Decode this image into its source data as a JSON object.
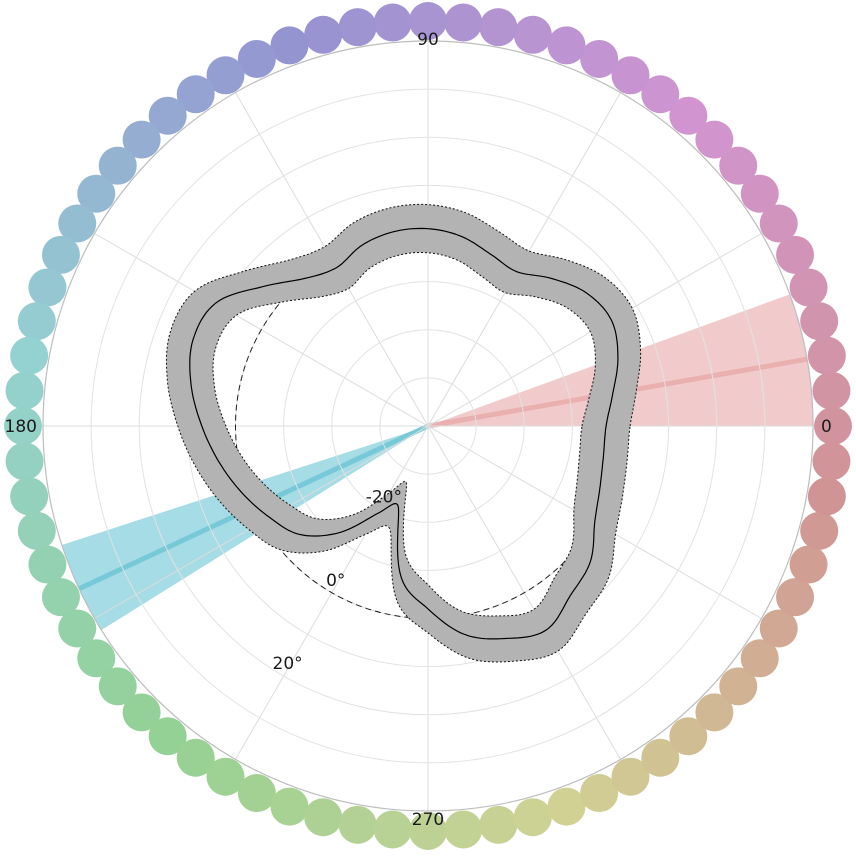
{
  "chart_data": {
    "type": "polar-line",
    "title": "",
    "angle_ticks": [
      {
        "angle": 0,
        "label": "0"
      },
      {
        "angle": 90,
        "label": "90"
      },
      {
        "angle": 180,
        "label": "180"
      },
      {
        "angle": 270,
        "label": "270"
      }
    ],
    "radial_ticks": [
      {
        "value": -20,
        "label": "-20°"
      },
      {
        "value": 0,
        "label": "0°"
      },
      {
        "value": 20,
        "label": "20°"
      }
    ],
    "radial_range": [
      -40,
      40
    ],
    "reference_circle_value": 0,
    "grid": true,
    "color_wheel": {
      "count": 72,
      "start_hue_deg": 350,
      "saturation": 40,
      "lightness": 70
    },
    "series": {
      "mean_angle_deg": [
        0,
        10,
        20,
        30,
        40,
        50,
        60,
        70,
        80,
        90,
        100,
        110,
        120,
        130,
        140,
        150,
        160,
        170,
        180,
        190,
        200,
        210,
        220,
        230,
        240,
        250,
        260,
        270,
        280,
        290,
        300,
        310,
        320,
        330,
        340,
        350
      ],
      "mean": [
        -3,
        -1,
        2,
        4,
        3,
        0,
        -3,
        -2,
        0,
        1,
        1,
        0,
        -2,
        0,
        5,
        11,
        12,
        10,
        7,
        4,
        1,
        -2,
        -5,
        -11,
        -19,
        -22,
        -8,
        -2,
        4,
        7,
        9,
        6,
        4,
        0,
        -2,
        -3
      ],
      "band_half_width": 5,
      "band_color": "#b3b3b3",
      "line_color": "#000000"
    },
    "wedges": [
      {
        "name": "",
        "center_angle_deg": 10,
        "half_width_deg": 10,
        "color": "#e8a9a9"
      },
      {
        "name": "",
        "center_angle_deg": 205,
        "half_width_deg": 7,
        "color": "#6bc4d4"
      }
    ]
  }
}
